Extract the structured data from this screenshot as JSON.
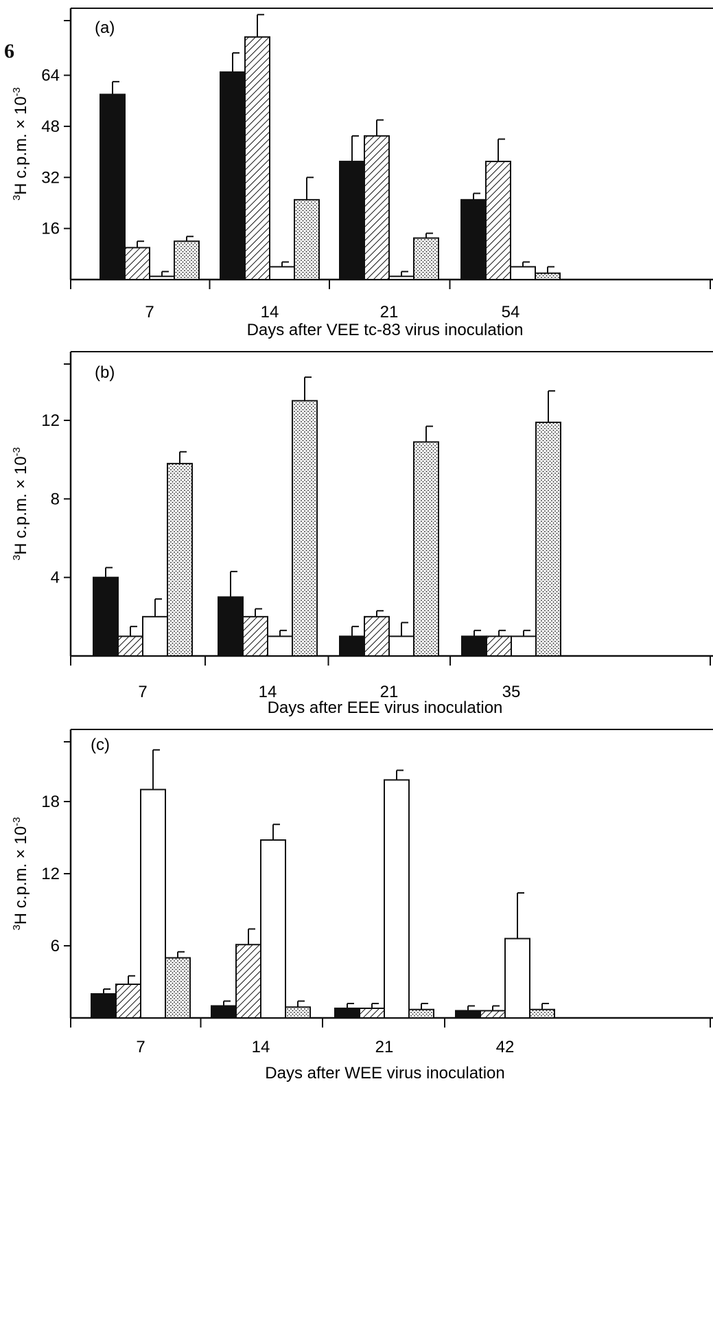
{
  "figure": {
    "label": "6"
  },
  "chart_data": [
    {
      "type": "bar",
      "panel_label": "(a)",
      "title": "",
      "xlabel": "Days after VEE tc-83 virus inoculation",
      "ylabel_base": "H c.p.m. × 10",
      "ylabel_sup_left": "3",
      "ylabel_sup_right": "-3",
      "categories": [
        "7",
        "14",
        "21",
        "54"
      ],
      "yticks": [
        "16",
        "32",
        "48",
        "64"
      ],
      "ytick_values": [
        16,
        32,
        48,
        64
      ],
      "ylim": [
        0,
        85
      ],
      "series": [
        {
          "fill": "solid",
          "values": [
            58,
            65,
            37,
            25
          ],
          "errors": [
            4,
            6,
            8,
            2
          ]
        },
        {
          "fill": "hatch",
          "values": [
            10,
            76,
            45,
            37
          ],
          "errors": [
            2,
            7,
            5,
            7
          ]
        },
        {
          "fill": "open",
          "values": [
            1,
            4,
            1,
            4
          ],
          "errors": [
            1.5,
            1.5,
            1.5,
            1.5
          ]
        },
        {
          "fill": "dots",
          "values": [
            12,
            25,
            13,
            2
          ],
          "errors": [
            1.5,
            7,
            1.5,
            2
          ]
        }
      ]
    },
    {
      "type": "bar",
      "panel_label": "(b)",
      "title": "",
      "xlabel": "Days after EEE virus inoculation",
      "ylabel_base": "H c.p.m. × 10",
      "ylabel_sup_left": "3",
      "ylabel_sup_right": "-3",
      "categories": [
        "7",
        "14",
        "21",
        "35"
      ],
      "yticks": [
        "4",
        "8",
        "12"
      ],
      "ytick_values": [
        4,
        8,
        12
      ],
      "ylim": [
        0,
        15.5
      ],
      "series": [
        {
          "fill": "solid",
          "values": [
            4,
            3,
            1,
            1
          ],
          "errors": [
            0.5,
            1.3,
            0.5,
            0.3
          ]
        },
        {
          "fill": "hatch",
          "values": [
            1,
            2,
            2,
            1
          ],
          "errors": [
            0.5,
            0.4,
            0.3,
            0.3
          ]
        },
        {
          "fill": "open",
          "values": [
            2,
            1,
            1,
            1
          ],
          "errors": [
            0.9,
            0.3,
            0.7,
            0.3
          ]
        },
        {
          "fill": "dots",
          "values": [
            9.8,
            13,
            10.9,
            11.9
          ],
          "errors": [
            0.6,
            1.2,
            0.8,
            1.6
          ]
        }
      ]
    },
    {
      "type": "bar",
      "panel_label": "(c)",
      "title": "",
      "xlabel": "Days after WEE virus inoculation",
      "ylabel_base": "H c.p.m. × 10",
      "ylabel_sup_left": "3",
      "ylabel_sup_right": "-3",
      "categories": [
        "7",
        "14",
        "21",
        "42"
      ],
      "yticks": [
        "6",
        "12",
        "18"
      ],
      "ytick_values": [
        6,
        12,
        18
      ],
      "ylim": [
        0,
        24
      ],
      "series": [
        {
          "fill": "solid",
          "values": [
            2,
            1,
            0.8,
            0.6
          ],
          "errors": [
            0.4,
            0.4,
            0.4,
            0.4
          ]
        },
        {
          "fill": "hatch",
          "values": [
            2.8,
            6.1,
            0.8,
            0.6
          ],
          "errors": [
            0.7,
            1.3,
            0.4,
            0.4
          ]
        },
        {
          "fill": "open",
          "values": [
            19,
            14.8,
            19.8,
            6.6
          ],
          "errors": [
            3.3,
            1.3,
            0.8,
            3.8
          ]
        },
        {
          "fill": "dots",
          "values": [
            5,
            0.9,
            0.7,
            0.7
          ],
          "errors": [
            0.5,
            0.5,
            0.5,
            0.5
          ]
        }
      ]
    }
  ]
}
